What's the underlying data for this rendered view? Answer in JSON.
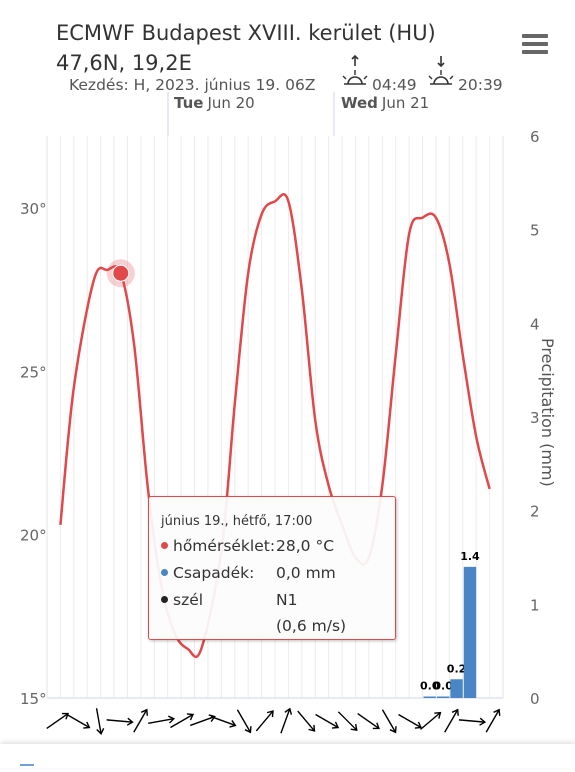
{
  "header": {
    "title": "ECMWF Budapest XVIII. kerület (HU) 47,6N, 19,2E"
  },
  "subtitle": {
    "start_label": "Kezdés: H, 2023. június 19. 06Z",
    "sunrise_time": "04:49",
    "sunset_time": "20:39"
  },
  "tooltip": {
    "heading": "június 19., hétfő, 17:00",
    "rows": [
      {
        "label": "hőmérséklet:",
        "value": "28,0 °C",
        "color": "#e0484a"
      },
      {
        "label": "Csapadék:",
        "value": "0,0 mm",
        "color": "#4a86c5"
      },
      {
        "label": "szél",
        "value": "N1",
        "color": "#222222"
      }
    ],
    "wind_speed": "(0,6 m/s)"
  },
  "chart_data": {
    "type": "line",
    "x_unit": "hours since 2023-06-19 06:00",
    "top_axis_labels": [
      {
        "weekday": "Tue",
        "date": "Jun 20"
      },
      {
        "weekday": "Wed",
        "date": "Jun 21"
      }
    ],
    "y_left": {
      "ticks": [
        "15°",
        "20°",
        "25°",
        "30°"
      ],
      "range": [
        15,
        32.2
      ]
    },
    "y_right": {
      "label": "Precipitation (mm)",
      "ticks": [
        "0",
        "1",
        "2",
        "3",
        "4",
        "5",
        "6"
      ],
      "range": [
        0,
        6
      ]
    },
    "series": [
      {
        "name": "hőmérséklet",
        "color": "#e0484a",
        "points": [
          [
            2,
            20.3
          ],
          [
            4,
            24.5
          ],
          [
            7,
            27.8
          ],
          [
            9,
            28.1
          ],
          [
            11,
            28.0
          ],
          [
            13,
            25.8
          ],
          [
            15,
            21.5
          ],
          [
            17,
            18.5
          ],
          [
            19,
            17.0
          ],
          [
            21,
            16.5
          ],
          [
            23,
            16.5
          ],
          [
            26,
            19.5
          ],
          [
            28,
            24.0
          ],
          [
            30,
            28.0
          ],
          [
            32,
            29.8
          ],
          [
            34,
            30.2
          ],
          [
            36,
            30.2
          ],
          [
            38,
            27.5
          ],
          [
            40,
            23.5
          ],
          [
            42,
            21.5
          ],
          [
            44,
            20.3
          ],
          [
            46,
            19.3
          ],
          [
            48,
            19.3
          ],
          [
            50,
            21.5
          ],
          [
            52,
            25.5
          ],
          [
            54,
            29.2
          ],
          [
            56,
            29.7
          ],
          [
            58,
            29.7
          ],
          [
            60,
            28.3
          ],
          [
            62,
            25.5
          ],
          [
            64,
            23.0
          ],
          [
            66,
            21.4
          ]
        ]
      },
      {
        "name": "Csapadék",
        "color": "#4a86c5",
        "bars": [
          {
            "start": 56,
            "end": 58,
            "value": 0.0,
            "label": "0.0"
          },
          {
            "start": 58,
            "end": 60,
            "value": 0.0,
            "label": "0.0"
          },
          {
            "start": 60,
            "end": 62,
            "value": 0.2,
            "label": "0.2"
          },
          {
            "start": 62,
            "end": 64,
            "value": 1.4,
            "label": "1.4"
          }
        ]
      }
    ],
    "highlight_point": {
      "x": 11,
      "y": 28.0
    },
    "wind_arrows_deg": [
      55,
      120,
      170,
      95,
      30,
      80,
      60,
      70,
      110,
      150,
      40,
      20,
      140,
      120,
      135,
      125,
      150,
      120,
      50,
      30,
      95,
      30
    ]
  }
}
